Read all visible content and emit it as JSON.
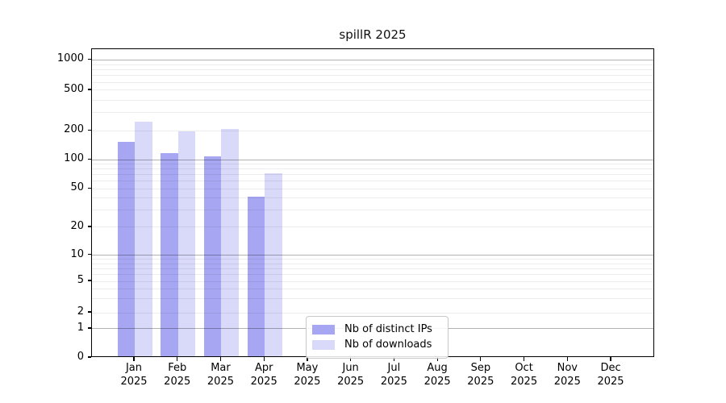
{
  "chart_data": {
    "type": "bar",
    "title": "spillR 2025",
    "x": {
      "categories": [
        "Jan",
        "Feb",
        "Mar",
        "Apr",
        "May",
        "Jun",
        "Jul",
        "Aug",
        "Sep",
        "Oct",
        "Nov",
        "Dec"
      ],
      "year_line": "2025"
    },
    "y": {
      "scale": "symlog",
      "ticks": [
        0,
        1,
        2,
        5,
        10,
        20,
        50,
        100,
        200,
        500,
        1000
      ],
      "major_gridlines_at": [
        1,
        10,
        100,
        1000
      ],
      "minor_gridline_decades": [
        1,
        10,
        100
      ],
      "grid": true
    },
    "series": [
      {
        "name": "Nb of distinct IPs",
        "color": "#a6a6f2",
        "values": [
          147,
          112,
          104,
          40,
          0,
          0,
          0,
          0,
          0,
          0,
          0,
          0
        ]
      },
      {
        "name": "Nb of downloads",
        "color": "#d9d9f9",
        "values": [
          236,
          188,
          200,
          70,
          0,
          0,
          0,
          0,
          0,
          0,
          0,
          0
        ]
      }
    ],
    "legend": {
      "position": "lower center"
    }
  }
}
